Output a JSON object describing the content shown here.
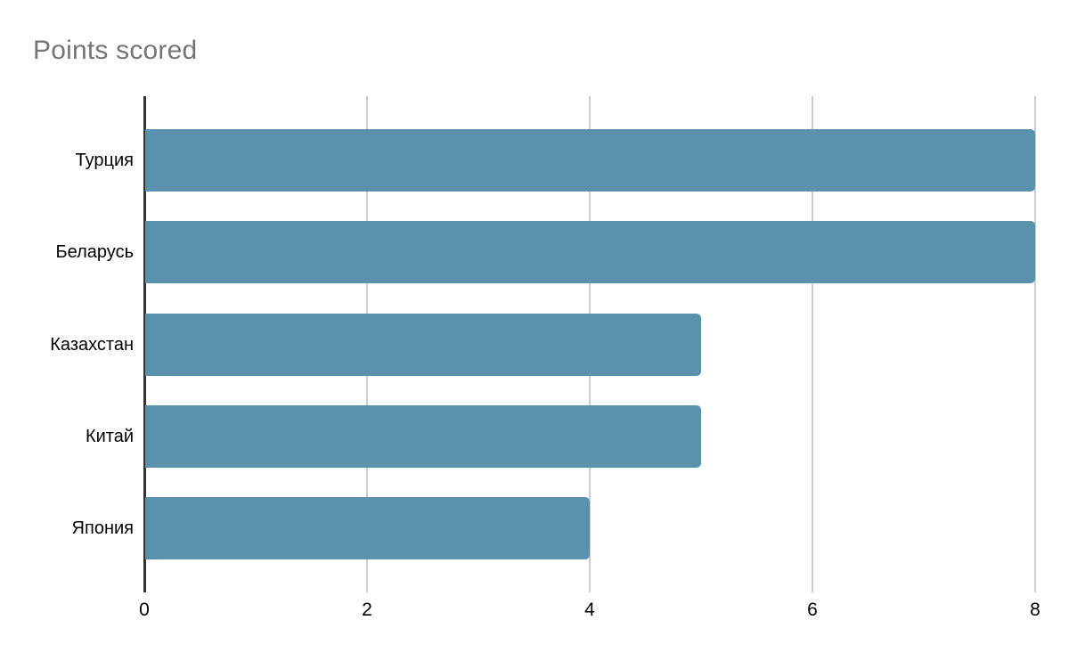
{
  "page": {
    "background": "#ffffff"
  },
  "chart_data": {
    "type": "bar",
    "orientation": "horizontal",
    "title": "Points scored",
    "categories": [
      "Турция",
      "Беларусь",
      "Казахстан",
      "Китай",
      "Япония"
    ],
    "values": [
      8,
      8,
      5,
      5,
      4
    ],
    "xlim": [
      0,
      8
    ],
    "x_ticks": [
      0,
      2,
      4,
      6,
      8
    ],
    "grid": true,
    "legend_position": "none",
    "colors": {
      "bar": "#5a92ad",
      "title": "#757575",
      "gridline": "#cccccc",
      "axis_line": "#333333",
      "label": "#000000"
    }
  }
}
